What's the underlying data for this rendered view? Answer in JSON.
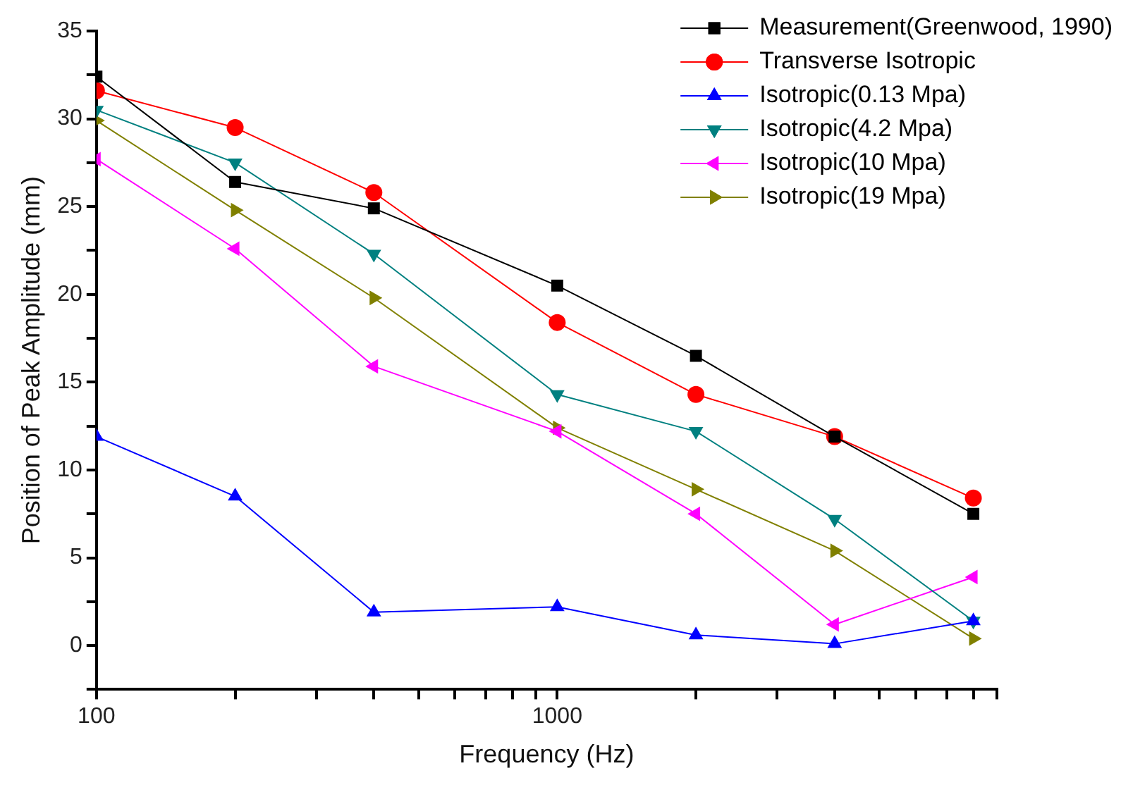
{
  "chart_data": {
    "type": "line",
    "xlabel": "Frequency (Hz)",
    "ylabel": "Position of Peak Amplitude (mm)",
    "log": "x",
    "x": [
      100,
      200,
      400,
      1000,
      2000,
      4000,
      8000
    ],
    "xlim": [
      100,
      9000
    ],
    "xticks": [
      100,
      {
        "value": 200,
        "label": null
      },
      {
        "value": 300,
        "label": null
      },
      {
        "value": 400,
        "label": null
      },
      {
        "value": 500,
        "label": null
      },
      {
        "value": 600,
        "label": null
      },
      {
        "value": 700,
        "label": null
      },
      {
        "value": 800,
        "label": null
      },
      {
        "value": 900,
        "label": null
      },
      1000,
      {
        "value": 2000,
        "label": null
      },
      {
        "value": 3000,
        "label": null
      },
      {
        "value": 4000,
        "label": null
      },
      {
        "value": 5000,
        "label": null
      },
      {
        "value": 6000,
        "label": null
      },
      {
        "value": 7000,
        "label": null
      },
      {
        "value": 8000,
        "label": null
      },
      {
        "value": 9000,
        "label": null
      }
    ],
    "ylim": [
      -2.5,
      35
    ],
    "yticks": [
      {
        "value": -2.5,
        "label": null
      },
      0,
      {
        "value": 2.5,
        "label": null
      },
      5,
      {
        "value": 7.5,
        "label": null
      },
      10,
      {
        "value": 12.5,
        "label": null
      },
      15,
      {
        "value": 17.5,
        "label": null
      },
      20,
      {
        "value": 22.5,
        "label": null
      },
      25,
      {
        "value": 27.5,
        "label": null
      },
      30,
      {
        "value": 32.5,
        "label": null
      },
      35
    ],
    "grid": false,
    "legend": "top right",
    "line_style": "solid",
    "series": [
      {
        "name": "Measurement(Greenwood, 1990)",
        "color": "#000000",
        "marker": "square",
        "values": [
          32.4,
          26.4,
          24.9,
          20.5,
          16.5,
          11.9,
          7.5
        ]
      },
      {
        "name": "Transverse Isotropic",
        "color": "#ff0000",
        "marker": "circle",
        "values": [
          31.6,
          29.5,
          25.8,
          18.4,
          14.3,
          11.9,
          8.4
        ]
      },
      {
        "name": "Isotropic(0.13 Mpa)",
        "color": "#0000ff",
        "marker": "triangle",
        "values": [
          11.9,
          8.5,
          1.9,
          2.2,
          0.6,
          0.1,
          1.4
        ]
      },
      {
        "name": "Isotropic(4.2 Mpa)",
        "color": "#008080",
        "marker": "triangle-down",
        "values": [
          30.5,
          27.5,
          22.3,
          14.3,
          12.2,
          7.2,
          1.4
        ]
      },
      {
        "name": "Isotropic(10 Mpa)",
        "color": "#ff00ff",
        "marker": "triangle-left",
        "values": [
          27.7,
          22.6,
          15.9,
          12.2,
          7.5,
          1.2,
          3.9
        ]
      },
      {
        "name": "Isotropic(19 Mpa)",
        "color": "#808000",
        "marker": "triangle-right",
        "values": [
          29.9,
          24.8,
          19.8,
          12.4,
          8.9,
          5.4,
          0.4
        ]
      }
    ]
  }
}
